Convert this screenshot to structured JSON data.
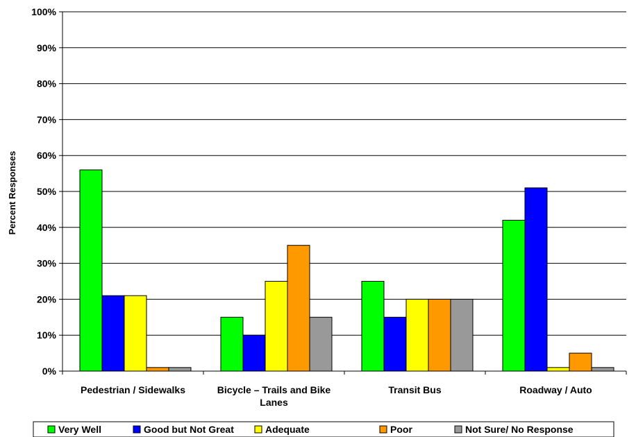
{
  "chart_data": {
    "type": "bar",
    "categories": [
      [
        "Pedestrian / Sidewalks"
      ],
      [
        "Bicycle – Trails and Bike",
        "Lanes"
      ],
      [
        "Transit Bus"
      ],
      [
        "Roadway / Auto"
      ]
    ],
    "series": [
      {
        "name": "Very Well",
        "color": "#00ff00",
        "values": [
          56,
          15,
          25,
          42
        ]
      },
      {
        "name": "Good but Not Great",
        "color": "#0000ff",
        "values": [
          21,
          10,
          15,
          51
        ]
      },
      {
        "name": "Adequate",
        "color": "#ffff00",
        "values": [
          21,
          25,
          20,
          1
        ]
      },
      {
        "name": "Poor",
        "color": "#ff9900",
        "values": [
          1,
          35,
          20,
          5
        ]
      },
      {
        "name": "Not Sure/ No Response",
        "color": "#999999",
        "values": [
          1,
          15,
          20,
          1
        ]
      }
    ],
    "ylabel": "Percent Responses",
    "xlabel": "",
    "title": "",
    "ylim": [
      0,
      100
    ],
    "yticks": [
      "0%",
      "10%",
      "20%",
      "30%",
      "40%",
      "50%",
      "60%",
      "70%",
      "80%",
      "90%",
      "100%"
    ],
    "grid": true,
    "legend_position": "bottom"
  }
}
